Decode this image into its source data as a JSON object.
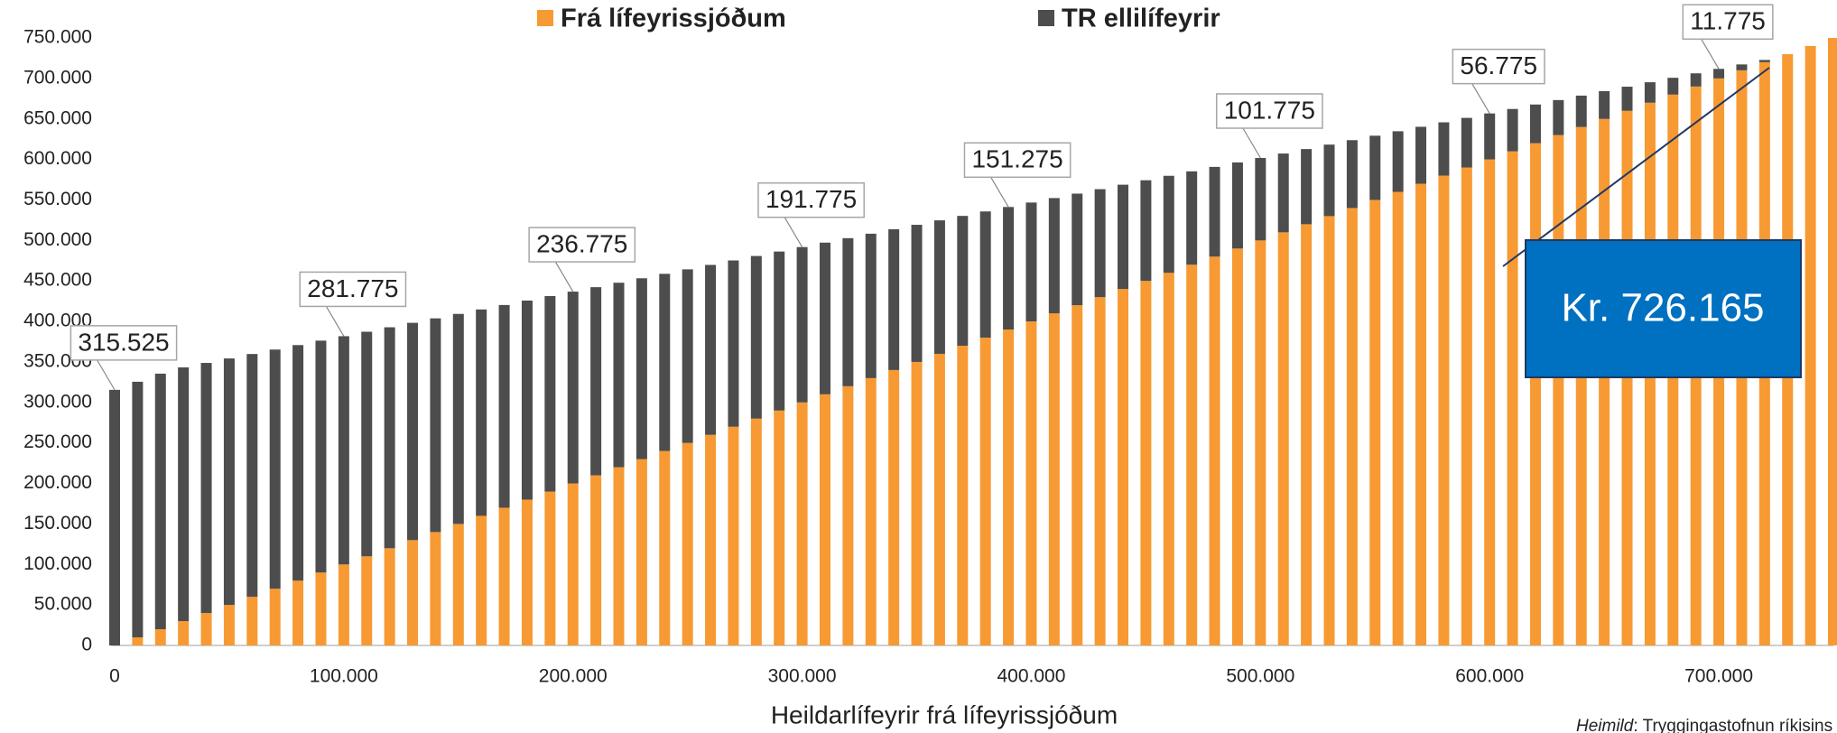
{
  "chart_data": {
    "type": "stacked_bar",
    "x": [
      0,
      10000,
      20000,
      30000,
      40000,
      50000,
      60000,
      70000,
      80000,
      90000,
      100000,
      110000,
      120000,
      130000,
      140000,
      150000,
      160000,
      170000,
      180000,
      190000,
      200000,
      210000,
      220000,
      230000,
      240000,
      250000,
      260000,
      270000,
      280000,
      290000,
      300000,
      310000,
      320000,
      330000,
      340000,
      350000,
      360000,
      370000,
      380000,
      390000,
      400000,
      410000,
      420000,
      430000,
      440000,
      450000,
      460000,
      470000,
      480000,
      490000,
      500000,
      510000,
      520000,
      530000,
      540000,
      550000,
      560000,
      570000,
      580000,
      590000,
      600000,
      610000,
      620000,
      630000,
      640000,
      650000,
      660000,
      670000,
      680000,
      690000,
      700000,
      710000,
      720000,
      730000,
      740000,
      750000
    ],
    "series": [
      {
        "name": "Frá lífeyrissjóðum",
        "color": "#f79a33",
        "values": [
          0,
          10000,
          20000,
          30000,
          40000,
          50000,
          60000,
          70000,
          80000,
          90000,
          100000,
          110000,
          120000,
          130000,
          140000,
          150000,
          160000,
          170000,
          180000,
          190000,
          200000,
          210000,
          220000,
          230000,
          240000,
          250000,
          260000,
          270000,
          280000,
          290000,
          300000,
          310000,
          320000,
          330000,
          340000,
          350000,
          360000,
          370000,
          380000,
          390000,
          400000,
          410000,
          420000,
          430000,
          440000,
          450000,
          460000,
          470000,
          480000,
          490000,
          500000,
          510000,
          520000,
          530000,
          540000,
          550000,
          560000,
          570000,
          580000,
          590000,
          600000,
          610000,
          620000,
          630000,
          640000,
          650000,
          660000,
          670000,
          680000,
          690000,
          700000,
          710000,
          720000,
          730000,
          740000,
          750000
        ]
      },
      {
        "name": "TR ellilífeyrir",
        "color": "#4d4d4d",
        "values": [
          315525,
          315525,
          315525,
          313275,
          308775,
          304275,
          299775,
          295275,
          290775,
          286275,
          281775,
          277275,
          272775,
          268275,
          263775,
          259275,
          254775,
          250275,
          245775,
          241275,
          236775,
          232275,
          227775,
          223275,
          218775,
          214275,
          209775,
          205275,
          200775,
          196275,
          191775,
          187275,
          182775,
          178275,
          173775,
          169275,
          164775,
          160275,
          155775,
          151275,
          146775,
          142275,
          137775,
          133275,
          128775,
          124275,
          119775,
          115275,
          110775,
          106275,
          101775,
          97275,
          92775,
          88275,
          83775,
          79275,
          74775,
          70275,
          65775,
          61275,
          56775,
          52275,
          47775,
          43275,
          38775,
          34275,
          29775,
          25275,
          20775,
          16275,
          11775,
          7275,
          2775,
          0,
          0,
          0
        ],
        "value_labels": [
          "315.525",
          null,
          null,
          null,
          null,
          null,
          null,
          null,
          null,
          null,
          "281.775",
          null,
          null,
          null,
          null,
          null,
          null,
          null,
          null,
          null,
          "236.775",
          null,
          null,
          null,
          null,
          null,
          null,
          null,
          null,
          null,
          "191.775",
          null,
          null,
          null,
          null,
          null,
          null,
          null,
          null,
          "151.275",
          null,
          null,
          null,
          null,
          null,
          null,
          null,
          null,
          null,
          null,
          "101.775",
          null,
          null,
          null,
          null,
          null,
          null,
          null,
          null,
          null,
          "56.775",
          null,
          null,
          null,
          null,
          null,
          null,
          null,
          null,
          null,
          "11.775",
          null,
          null,
          null,
          null,
          null
        ]
      }
    ],
    "xlabel": "Heildarlífeyrir frá lífeyrissjóðum",
    "xlim": [
      0,
      750000
    ],
    "ylim": [
      0,
      750000
    ],
    "xticks": [
      0,
      {
        "value": 100000,
        "label": "100.000"
      },
      {
        "value": 200000,
        "label": "200.000"
      },
      {
        "value": 300000,
        "label": "300.000"
      },
      {
        "value": 400000,
        "label": "400.000"
      },
      {
        "value": 500000,
        "label": "500.000"
      },
      {
        "value": 600000,
        "label": "600.000"
      },
      {
        "value": 700000,
        "label": "700.000"
      }
    ],
    "yticks": [
      0,
      {
        "value": 50000,
        "label": "50.000"
      },
      {
        "value": 100000,
        "label": "100.000"
      },
      {
        "value": 150000,
        "label": "150.000"
      },
      {
        "value": 200000,
        "label": "200.000"
      },
      {
        "value": 250000,
        "label": "250.000"
      },
      {
        "value": 300000,
        "label": "300.000"
      },
      {
        "value": 350000,
        "label": "350.000"
      },
      {
        "value": 400000,
        "label": "400.000"
      },
      {
        "value": 450000,
        "label": "450.000"
      },
      {
        "value": 500000,
        "label": "500.000"
      },
      {
        "value": 550000,
        "label": "550.000"
      },
      {
        "value": 600000,
        "label": "600.000"
      },
      {
        "value": 650000,
        "label": "650.000"
      },
      {
        "value": 700000,
        "label": "700.000"
      },
      {
        "value": 750000,
        "label": "750.000"
      }
    ],
    "annotation": "Kr. 726.165",
    "source_label": "Heimild",
    "source": ": Tryggingastofnun ríkisins",
    "grid": false
  }
}
